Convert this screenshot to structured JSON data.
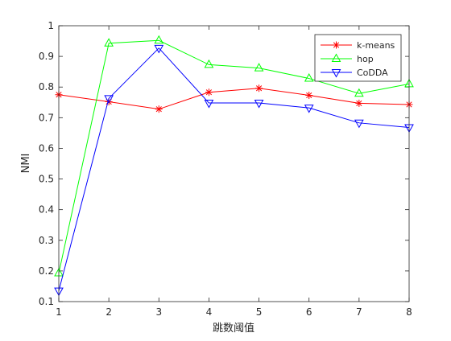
{
  "chart_data": {
    "type": "line",
    "title": "",
    "xlabel": "跳数阈值",
    "ylabel": "NMI",
    "x": [
      1,
      2,
      3,
      4,
      5,
      6,
      7,
      8
    ],
    "xlim": [
      1,
      8
    ],
    "ylim": [
      0.1,
      1
    ],
    "xticks": [
      "1",
      "2",
      "3",
      "4",
      "5",
      "6",
      "7",
      "8"
    ],
    "yticks": [
      "0.1",
      "0.2",
      "0.3",
      "0.4",
      "0.5",
      "0.6",
      "0.7",
      "0.8",
      "0.9",
      "1"
    ],
    "grid": false,
    "legend_position": "top-right",
    "series": [
      {
        "name": "k-means",
        "color": "#ff0000",
        "marker": "asterisk",
        "values": [
          0.775,
          0.752,
          0.728,
          0.783,
          0.796,
          0.773,
          0.747,
          0.743
        ]
      },
      {
        "name": "hop",
        "color": "#00ff00",
        "marker": "triangle-up",
        "values": [
          0.193,
          0.943,
          0.952,
          0.873,
          0.862,
          0.828,
          0.779,
          0.81
        ]
      },
      {
        "name": "CoDDA",
        "color": "#0000ff",
        "marker": "triangle-down",
        "values": [
          0.135,
          0.763,
          0.927,
          0.748,
          0.748,
          0.732,
          0.683,
          0.668
        ]
      }
    ]
  }
}
